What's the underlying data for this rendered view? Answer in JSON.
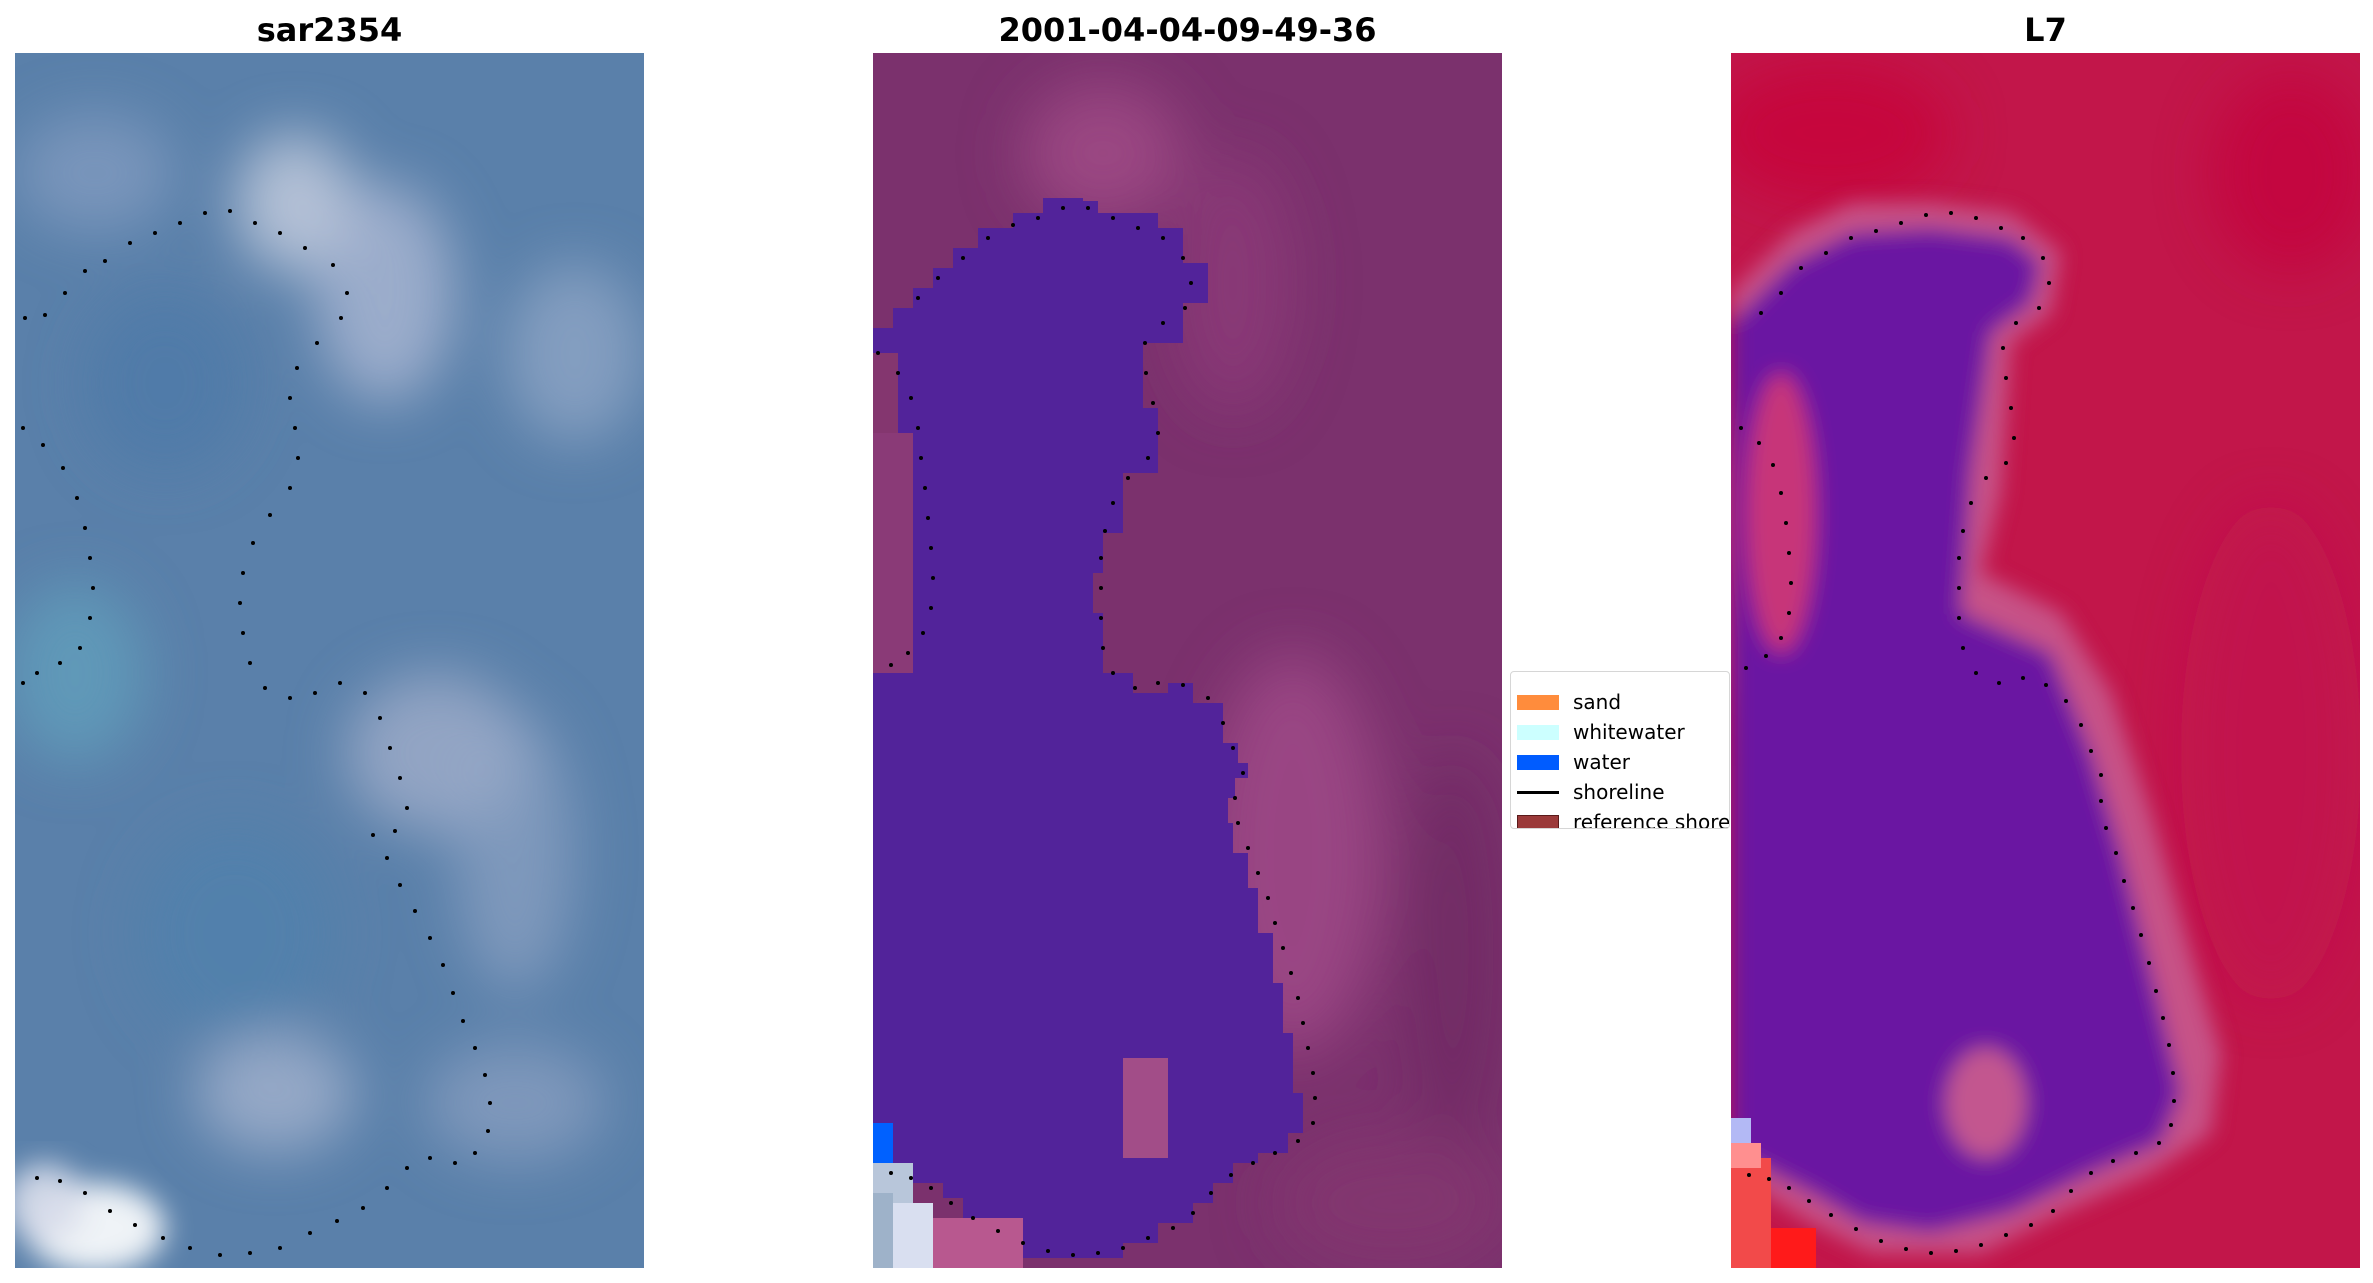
{
  "panels": [
    {
      "title": "sar2354"
    },
    {
      "title": "2001-04-04-09-49-36"
    },
    {
      "title": "L7"
    }
  ],
  "legend": {
    "items": [
      {
        "label": "sand",
        "type": "patch",
        "color": "#ff8c3c"
      },
      {
        "label": "whitewater",
        "type": "patch",
        "color": "#ccffff"
      },
      {
        "label": "water",
        "type": "patch",
        "color": "#005cff"
      },
      {
        "label": "shoreline",
        "type": "line",
        "color": "#000000"
      },
      {
        "label": "reference shoreline",
        "type": "patch",
        "color": "#9b3a3a"
      }
    ]
  },
  "colors": {
    "rgb_base": "#5a7fa8",
    "classified_background": "#7b316d",
    "classified_water_class": "#52239a",
    "mndwi_background": "#c2164a",
    "mndwi_water": "#6a16a2",
    "shoreline_points": "#000000"
  }
}
